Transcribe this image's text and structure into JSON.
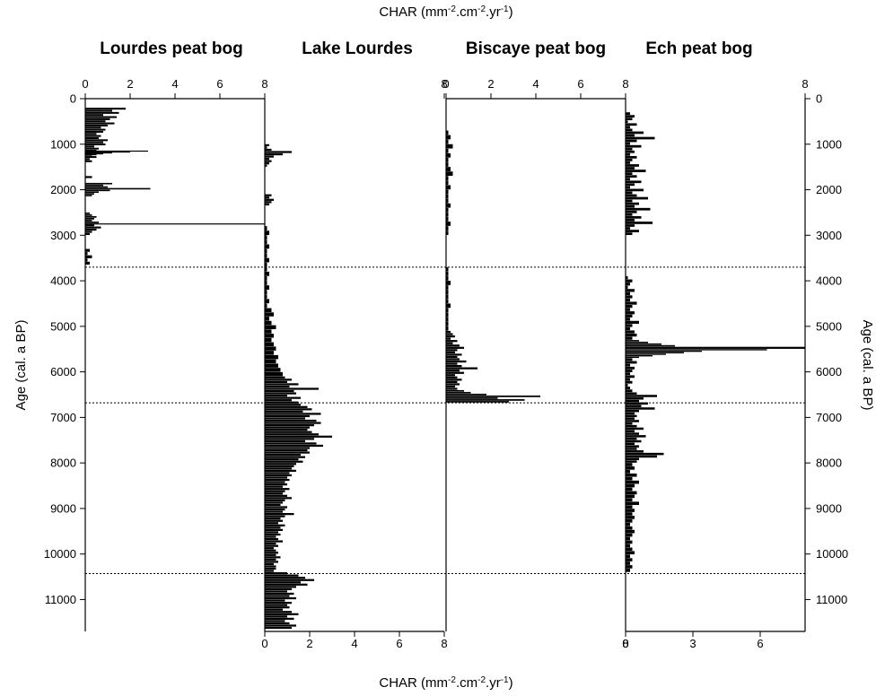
{
  "chart_data": {
    "type": "bar",
    "orientation": "horizontal",
    "top_axis_title": "CHAR (mm",
    "bottom_axis_title": "CHAR (mm",
    "axis_unit_parts": [
      ".cm",
      ".yr",
      ")"
    ],
    "axis_unit_sups": [
      "-2",
      "-2",
      "-1"
    ],
    "left_axis_title": "Age (cal. a BP)",
    "right_axis_title": "Age (cal. a BP)",
    "age_range": [
      0,
      11700
    ],
    "age_ticks": [
      "0",
      "1000",
      "2000",
      "3000",
      "4000",
      "5000",
      "6000",
      "7000",
      "8000",
      "9000",
      "10000",
      "11000"
    ],
    "zone_boundaries": [
      3700,
      6680,
      10430
    ],
    "grid": false,
    "panels": [
      {
        "title": "Lourdes peat bog",
        "xlim": [
          0,
          8
        ],
        "top_ticks": [
          "0",
          "2",
          "4",
          "6",
          "8"
        ],
        "bottom_ticks": [],
        "series": [
          {
            "age_start": 200,
            "age_end": 1400,
            "values": [
              1.8,
              1.2,
              1.5,
              0.8,
              1.4,
              1.1,
              0.9,
              1.3,
              1.0,
              0.7,
              0.9,
              0.8,
              0.5,
              0.7,
              0.6,
              1.0,
              0.8,
              0.9,
              0.4,
              0.6,
              0.5,
              0.4,
              0.3,
              0.5,
              0.2,
              0.3
            ]
          },
          {
            "age_start": 1140,
            "age_end": 1160,
            "values": [
              2.8
            ]
          },
          {
            "age_start": 1160,
            "age_end": 1240,
            "values": [
              2.0,
              1.2,
              0.8,
              0.5
            ]
          },
          {
            "age_start": 1700,
            "age_end": 1750,
            "values": [
              0.3
            ]
          },
          {
            "age_start": 1850,
            "age_end": 2150,
            "values": [
              1.2,
              0.8,
              1.0,
              2.9,
              1.1,
              0.6,
              0.4,
              0.3
            ]
          },
          {
            "age_start": 2500,
            "age_end": 2740,
            "values": [
              0.2,
              0.3,
              0.5,
              0.4,
              0.3,
              0.6
            ]
          },
          {
            "age_start": 2740,
            "age_end": 2760,
            "values": [
              8.0
            ]
          },
          {
            "age_start": 2760,
            "age_end": 3000,
            "values": [
              0.4,
              0.7,
              0.5,
              0.3,
              0.2
            ]
          },
          {
            "age_start": 3300,
            "age_end": 3650,
            "values": [
              0.2,
              0.1,
              0.3,
              0.1,
              0.2
            ]
          }
        ]
      },
      {
        "title": "Lake Lourdes",
        "xlim": [
          0,
          8
        ],
        "top_ticks": [
          "8"
        ],
        "bottom_ticks": [
          "0",
          "2",
          "4",
          "6",
          "8"
        ],
        "series": [
          {
            "age_start": 1000,
            "age_end": 1500,
            "values": [
              0.2,
              0.1,
              0.3,
              1.2,
              0.8,
              0.4,
              0.2,
              0.3,
              0.2,
              0.1
            ]
          },
          {
            "age_start": 2100,
            "age_end": 2350,
            "values": [
              0.3,
              0.2,
              0.4,
              0.3,
              0.2
            ]
          },
          {
            "age_start": 2800,
            "age_end": 4600,
            "values": [
              0.1,
              0.2,
              0.1,
              0.1,
              0.2,
              0.1,
              0.1,
              0.2,
              0.1,
              0.1,
              0.2,
              0.1,
              0.1,
              0.2,
              0.1,
              0.1,
              0.2,
              0.1
            ]
          },
          {
            "age_start": 4600,
            "age_end": 6100,
            "values": [
              0.3,
              0.4,
              0.2,
              0.3,
              0.5,
              0.3,
              0.4,
              0.3,
              0.4,
              0.5,
              0.4,
              0.6,
              0.5,
              0.6,
              0.7,
              0.8
            ]
          },
          {
            "age_start": 6100,
            "age_end": 6700,
            "values": [
              0.9,
              1.2,
              1.0,
              1.5,
              1.1,
              2.4,
              1.3,
              1.4,
              1.0,
              1.6,
              1.2,
              1.5
            ]
          },
          {
            "age_start": 6700,
            "age_end": 8400,
            "values": [
              1.6,
              1.9,
              2.1,
              1.7,
              2.5,
              2.0,
              1.8,
              2.3,
              2.5,
              2.2,
              2.0,
              1.9,
              2.1,
              2.4,
              3.0,
              2.2,
              1.8,
              2.3,
              2.6,
              2.0,
              1.9,
              2.0,
              1.6,
              1.8,
              1.5,
              1.7,
              1.4,
              1.3,
              1.2,
              1.4,
              1.1,
              1.2,
              1.0,
              1.1
            ]
          },
          {
            "age_start": 8400,
            "age_end": 10400,
            "values": [
              0.9,
              1.0,
              0.8,
              1.1,
              0.9,
              0.8,
              1.0,
              1.2,
              0.9,
              0.8,
              0.7,
              1.0,
              0.9,
              0.8,
              1.3,
              0.9,
              0.7,
              0.8,
              0.6,
              0.9,
              0.7,
              0.8,
              0.6,
              0.7,
              0.5,
              0.6,
              0.8,
              0.5,
              0.6,
              0.4,
              0.5,
              0.6,
              0.5,
              0.7,
              0.5,
              0.6,
              0.4,
              0.5,
              0.5,
              0.4
            ]
          },
          {
            "age_start": 10400,
            "age_end": 11650,
            "values": [
              1.0,
              1.5,
              1.8,
              2.2,
              1.6,
              1.9,
              1.4,
              1.2,
              1.0,
              1.3,
              1.1,
              1.4,
              0.9,
              1.2,
              1.0,
              1.1,
              0.8,
              1.2,
              1.5,
              1.0,
              1.3,
              0.9,
              1.1,
              1.4,
              1.2
            ]
          }
        ]
      },
      {
        "title": "Biscaye peat bog",
        "xlim": [
          0,
          8
        ],
        "top_ticks": [
          "0",
          "2",
          "4",
          "6",
          "8"
        ],
        "bottom_ticks": [
          "8"
        ],
        "series": [
          {
            "age_start": 700,
            "age_end": 3000,
            "values": [
              0.1,
              0.2,
              0.1,
              0.3,
              0.1,
              0.2,
              0.1,
              0.1,
              0.2,
              0.3,
              0.1,
              0.1,
              0.2,
              0.1,
              0.1,
              0.1,
              0.2,
              0.1,
              0.1,
              0.1,
              0.2,
              0.1,
              0.1
            ]
          },
          {
            "age_start": 3700,
            "age_end": 5100,
            "values": [
              0.1,
              0.1,
              0.1,
              0.2,
              0.1,
              0.1,
              0.1,
              0.1,
              0.2,
              0.1,
              0.1,
              0.1,
              0.1,
              0.1
            ]
          },
          {
            "age_start": 5100,
            "age_end": 5700,
            "values": [
              0.2,
              0.3,
              0.4,
              0.2,
              0.5,
              0.3,
              0.6,
              0.8,
              0.5,
              0.4,
              0.7,
              0.5
            ]
          },
          {
            "age_start": 5700,
            "age_end": 6400,
            "values": [
              0.6,
              0.9,
              0.5,
              0.7,
              1.4,
              0.6,
              0.8,
              0.4,
              0.5,
              0.7,
              0.5,
              0.6,
              0.4,
              0.5
            ]
          },
          {
            "age_start": 6400,
            "age_end": 6680,
            "values": [
              0.8,
              1.1,
              1.8,
              4.2,
              2.3,
              3.5,
              2.8
            ]
          }
        ]
      },
      {
        "title": "Ech peat bog",
        "xlim": [
          0,
          8
        ],
        "top_ticks": [
          "8"
        ],
        "bottom_ticks": [
          "0",
          "3",
          "6"
        ],
        "series": [
          {
            "age_start": 300,
            "age_end": 3000,
            "values": [
              0.2,
              0.4,
              0.3,
              0.1,
              0.5,
              0.2,
              0.3,
              0.8,
              0.4,
              1.3,
              0.5,
              0.2,
              0.7,
              0.3,
              0.4,
              0.2,
              0.5,
              0.3,
              0.2,
              0.6,
              0.4,
              0.9,
              0.3,
              0.5,
              0.2,
              0.7,
              0.4,
              0.2,
              0.8,
              0.3,
              0.5,
              1.0,
              0.3,
              0.6,
              0.4,
              1.1,
              0.5,
              0.3,
              0.7,
              0.4,
              1.2,
              0.4,
              0.2,
              0.6,
              0.3
            ]
          },
          {
            "age_start": 3900,
            "age_end": 5300,
            "values": [
              0.1,
              0.3,
              0.2,
              0.1,
              0.4,
              0.2,
              0.3,
              0.2,
              0.5,
              0.3,
              0.2,
              0.4,
              0.3,
              0.2,
              0.6,
              0.3,
              0.2,
              0.4,
              0.5,
              0.3
            ]
          },
          {
            "age_start": 5300,
            "age_end": 5450,
            "values": [
              0.6,
              1.0,
              1.6,
              2.2
            ]
          },
          {
            "age_start": 5450,
            "age_end": 5500,
            "values": [
              8.0
            ]
          },
          {
            "age_start": 5500,
            "age_end": 5700,
            "values": [
              6.3,
              3.4,
              2.6,
              1.8,
              1.2,
              0.6
            ]
          },
          {
            "age_start": 5700,
            "age_end": 6450,
            "values": [
              0.3,
              0.5,
              0.2,
              0.4,
              0.3,
              0.2,
              0.4,
              0.2,
              0.3,
              0.1,
              0.2,
              0.3
            ]
          },
          {
            "age_start": 6450,
            "age_end": 7000,
            "values": [
              0.5,
              1.4,
              0.8,
              0.6,
              1.0,
              0.7,
              1.3,
              0.6,
              0.4,
              0.5
            ]
          },
          {
            "age_start": 7000,
            "age_end": 8000,
            "values": [
              0.4,
              0.6,
              0.3,
              0.5,
              0.8,
              0.4,
              0.6,
              0.9,
              0.5,
              0.7,
              0.4,
              0.6,
              0.5,
              0.8,
              1.7,
              1.4,
              0.6,
              0.5
            ]
          },
          {
            "age_start": 8000,
            "age_end": 10400,
            "values": [
              0.3,
              0.4,
              0.2,
              0.5,
              0.3,
              0.6,
              0.4,
              0.3,
              0.5,
              0.4,
              0.3,
              0.6,
              0.3,
              0.4,
              0.3,
              0.4,
              0.3,
              0.2,
              0.3,
              0.4,
              0.3,
              0.2,
              0.3,
              0.2,
              0.3,
              0.4,
              0.2,
              0.3,
              0.2,
              0.3,
              0.2
            ]
          }
        ]
      }
    ]
  }
}
